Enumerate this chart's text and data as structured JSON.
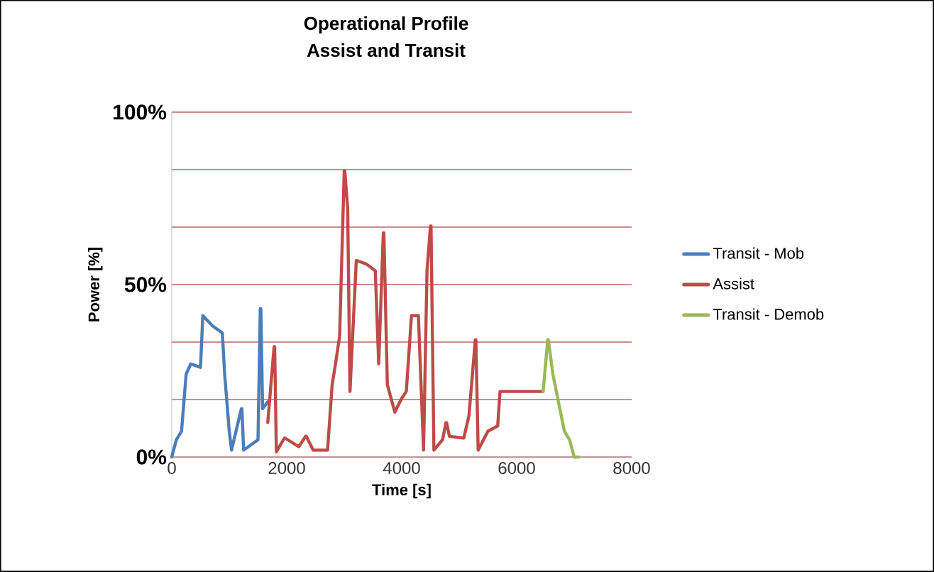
{
  "chart_data": {
    "type": "line",
    "title": "Operational Profile",
    "subtitle": "Assist and Transit",
    "xlabel": "Time [s]",
    "ylabel": "Power [%]",
    "xlim": [
      0,
      8000
    ],
    "xticks": [
      0,
      2000,
      4000,
      6000,
      8000
    ],
    "ylim": [
      0,
      100
    ],
    "yticks": [
      {
        "value": 0,
        "label": "0%"
      },
      {
        "value": 16.67,
        "label": null
      },
      {
        "value": 33.33,
        "label": null
      },
      {
        "value": 50,
        "label": "50%"
      },
      {
        "value": 66.67,
        "label": null
      },
      {
        "value": 83.33,
        "label": null
      },
      {
        "value": 100,
        "label": "100%"
      }
    ],
    "grid": "y",
    "legend": "right",
    "marker": "none",
    "line_style": "solid",
    "series": [
      {
        "name": "Transit - Mob",
        "color": "#4a7ebb",
        "x": [
          0,
          80,
          170,
          250,
          330,
          500,
          540,
          710,
          880,
          920,
          1000,
          1040,
          1210,
          1220,
          1250,
          1500,
          1540,
          1550,
          1580,
          1670
        ],
        "values": [
          0,
          5,
          7.5,
          24,
          27,
          26,
          41,
          38,
          36,
          24,
          7.5,
          2,
          14,
          14,
          2,
          5,
          43,
          43,
          14,
          16
        ]
      },
      {
        "name": "Assist",
        "color": "#be4b48",
        "x": [
          1670,
          1780,
          1790,
          1820,
          1960,
          1970,
          2210,
          2330,
          2340,
          2460,
          2710,
          2790,
          2830,
          2920,
          3000,
          3010,
          3060,
          3100,
          3210,
          3380,
          3540,
          3600,
          3680,
          3690,
          3750,
          3880,
          4000,
          4080,
          4170,
          4290,
          4380,
          4440,
          4500,
          4510,
          4560,
          4710,
          4770,
          4780,
          4830,
          5080,
          5170,
          5280,
          5290,
          5330,
          5500,
          5670,
          5710,
          6460
        ],
        "values": [
          10,
          32,
          32,
          1.5,
          5.5,
          5.5,
          3,
          6,
          6,
          2,
          2,
          21,
          25,
          35,
          83,
          83,
          72,
          19,
          57,
          56,
          54,
          27,
          65,
          65,
          21,
          13,
          17,
          19,
          41,
          41,
          2,
          54,
          67,
          67,
          2,
          5,
          10,
          10,
          6,
          5.5,
          12,
          34,
          34,
          2,
          7.5,
          9,
          19,
          19
        ]
      },
      {
        "name": "Transit - Demob",
        "color": "#98b954",
        "x": [
          6460,
          6540,
          6550,
          6630,
          6750,
          6830,
          6920,
          7000,
          7080
        ],
        "values": [
          19,
          34,
          34,
          24,
          14,
          7.5,
          5,
          0,
          0
        ]
      }
    ]
  }
}
